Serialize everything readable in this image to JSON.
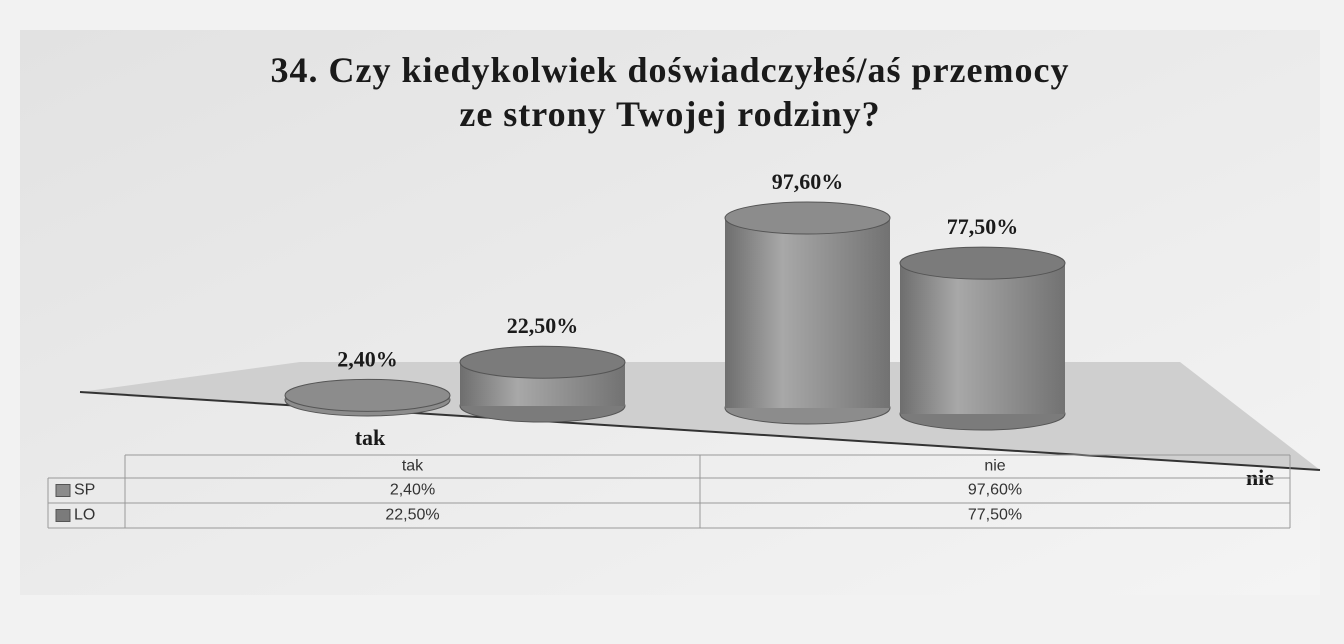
{
  "chart_data": {
    "type": "bar3d",
    "title": "34. Czy kiedykolwiek doświadczyłeś/aś przemocy ze strony Twojej rodziny?",
    "categories": [
      "tak",
      "nie"
    ],
    "series": [
      {
        "name": "SP",
        "color": "#8c8c8c",
        "values": [
          2.4,
          97.6
        ],
        "value_labels": [
          "2,40%",
          "97,60%"
        ]
      },
      {
        "name": "LO",
        "color": "#7b7b7b",
        "values": [
          22.5,
          77.5
        ],
        "value_labels": [
          "22,50%",
          "77,50%"
        ]
      }
    ],
    "legend": "table"
  }
}
